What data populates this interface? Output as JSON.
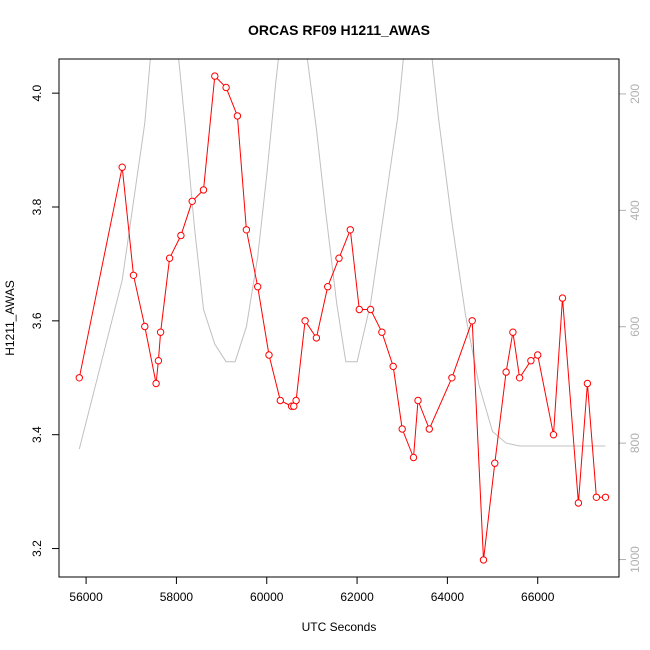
{
  "chart_data": {
    "type": "line",
    "title": "ORCAS RF09 H1211_AWAS",
    "xlabel": "UTC Seconds",
    "ylabel": "H1211_AWAS",
    "xlim": [
      55400,
      67800
    ],
    "ylim": [
      3.15,
      4.06
    ],
    "x_ticks": [
      56000,
      58000,
      60000,
      62000,
      64000,
      66000
    ],
    "x_tick_labels": [
      "56000",
      "58000",
      "60000",
      "62000",
      "64000",
      "66000"
    ],
    "y_ticks": [
      3.2,
      3.4,
      3.6,
      3.8,
      4.0
    ],
    "y_tick_labels": [
      "3.2",
      "3.4",
      "3.6",
      "3.8",
      "4.0"
    ],
    "y2_ticks": [
      200,
      400,
      600,
      800,
      1000
    ],
    "y2_tick_labels": [
      "200",
      "400",
      "600",
      "800",
      "1000"
    ],
    "y2lim": [
      1030,
      140
    ],
    "grid": false,
    "series": [
      {
        "color": "#ff0000",
        "marker": "open-circle",
        "x": [
          55850,
          56800,
          57050,
          57300,
          57550,
          57600,
          57650,
          57850,
          58100,
          58350,
          58600,
          58850,
          59100,
          59350,
          59550,
          59800,
          60050,
          60300,
          60550,
          60600,
          60650,
          60850,
          61100,
          61350,
          61600,
          61850,
          62050,
          62300,
          62550,
          62800,
          63000,
          63250,
          63350,
          63600,
          64100,
          64550,
          64800,
          65050,
          65300,
          65450,
          65600,
          65850,
          66000,
          66350,
          66550,
          66900,
          67100,
          67300,
          67500
        ],
        "y": [
          3.5,
          3.87,
          3.68,
          3.59,
          3.49,
          3.53,
          3.58,
          3.71,
          3.75,
          3.81,
          3.83,
          4.03,
          4.01,
          3.96,
          3.76,
          3.66,
          3.54,
          3.46,
          3.45,
          3.45,
          3.46,
          3.6,
          3.57,
          3.66,
          3.71,
          3.76,
          3.62,
          3.62,
          3.58,
          3.52,
          3.41,
          3.36,
          3.46,
          3.41,
          3.5,
          3.6,
          3.18,
          3.35,
          3.51,
          3.58,
          3.5,
          3.53,
          3.54,
          3.4,
          3.64,
          3.28,
          3.49,
          3.29,
          3.29
        ]
      },
      {
        "color": "#c0c0c0",
        "axis": "right",
        "x": [
          55850,
          56800,
          57300,
          57500,
          57700,
          57850,
          58000,
          58200,
          58400,
          58600,
          58850,
          59100,
          59300,
          59550,
          59800,
          60000,
          60200,
          60400,
          60550,
          60700,
          60900,
          61100,
          61300,
          61550,
          61750,
          62000,
          62300,
          62600,
          62900,
          63100,
          63300,
          63550,
          63800,
          64100,
          64400,
          64700,
          65000,
          65300,
          65600,
          66000,
          66500,
          67000,
          67500
        ],
        "y": [
          810,
          520,
          250,
          70,
          10,
          20,
          100,
          260,
          430,
          570,
          630,
          660,
          660,
          600,
          480,
          340,
          180,
          40,
          0,
          30,
          140,
          260,
          400,
          560,
          660,
          660,
          560,
          400,
          240,
          80,
          -20,
          60,
          240,
          420,
          580,
          700,
          780,
          800,
          805,
          805,
          805,
          805,
          805
        ]
      }
    ]
  }
}
